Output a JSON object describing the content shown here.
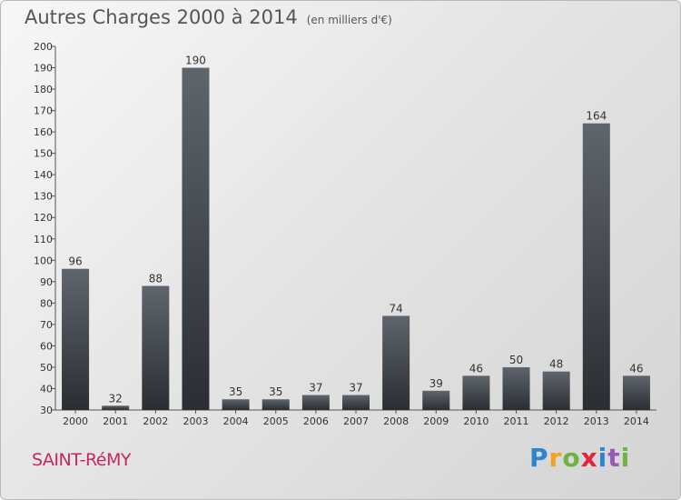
{
  "title": "Autres Charges 2000 à 2014",
  "subtitle": "(en milliers d'€)",
  "commune": "SAINT-RéMY",
  "brand_letters": [
    "P",
    "r",
    "o",
    "x",
    "i",
    "t",
    "i"
  ],
  "colors": {
    "bar_top": "#5f656c",
    "bar_bottom": "#2a2e33",
    "commune": "#c8285a"
  },
  "chart_data": {
    "type": "bar",
    "title": "Autres Charges 2000 à 2014",
    "subtitle": "(en milliers d'€)",
    "categories": [
      "2000",
      "2001",
      "2002",
      "2003",
      "2004",
      "2005",
      "2006",
      "2007",
      "2008",
      "2009",
      "2010",
      "2011",
      "2012",
      "2013",
      "2014"
    ],
    "values": [
      96,
      32,
      88,
      190,
      35,
      35,
      37,
      37,
      74,
      39,
      46,
      50,
      48,
      164,
      46
    ],
    "ylim": [
      30,
      200
    ],
    "yticks": [
      30,
      40,
      50,
      60,
      70,
      80,
      90,
      100,
      110,
      120,
      130,
      140,
      150,
      160,
      170,
      180,
      190,
      200
    ],
    "grid": false,
    "data_labels": true
  }
}
